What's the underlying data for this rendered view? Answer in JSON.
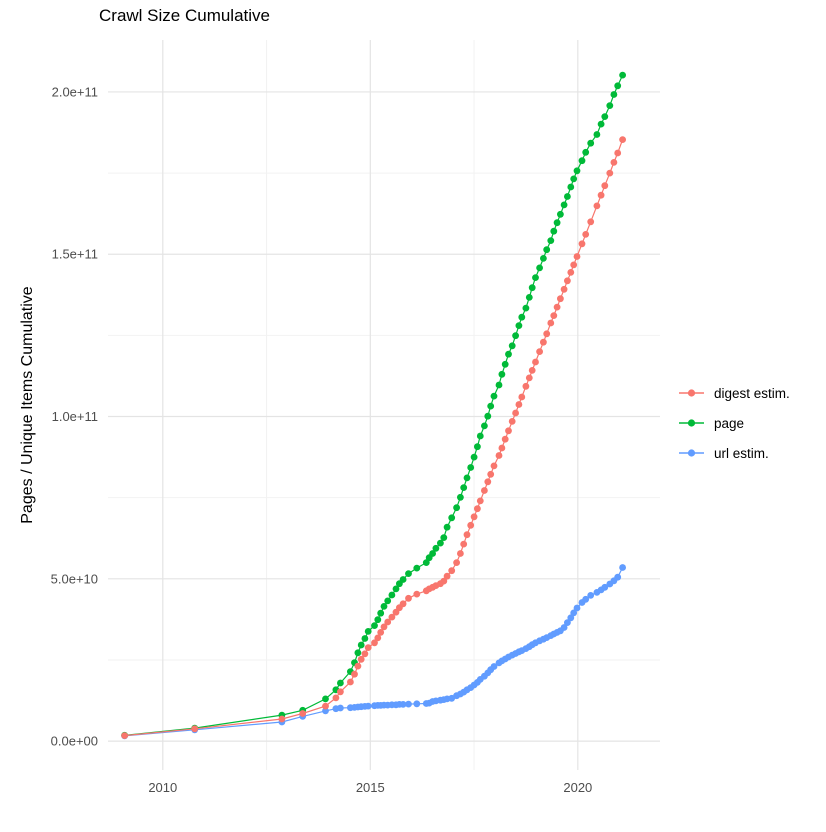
{
  "title": "Crawl Size Cumulative",
  "colors": {
    "digest": "#F8766D",
    "page": "#00BA38",
    "url": "#619CFF",
    "grid_major": "#e4e4e4",
    "grid_minor": "#f2f2f2",
    "tick_text": "#4d4d4d"
  },
  "chart_data": {
    "type": "scatter",
    "title": "Crawl Size Cumulative",
    "xlabel": "",
    "ylabel": "Pages / Unique Items Cumulative",
    "value_unit": "billions of pages (1e9)",
    "grid": true,
    "legend_position": "right",
    "xlim": [
      2008.68,
      2021.98
    ],
    "ylim_billions": [
      -8.9,
      216.0
    ],
    "x_ticks": [
      {
        "label": "2010",
        "value": 2010
      },
      {
        "label": "2015",
        "value": 2015
      },
      {
        "label": "2020",
        "value": 2020
      }
    ],
    "x_minor": [
      2012.5,
      2017.5
    ],
    "y_ticks": [
      {
        "label": "0.0e+00",
        "value": 0
      },
      {
        "label": "5.0e+10",
        "value": 50
      },
      {
        "label": "1.0e+11",
        "value": 100
      },
      {
        "label": "1.5e+11",
        "value": 150
      },
      {
        "label": "2.0e+11",
        "value": 200
      }
    ],
    "y_minor": [
      25,
      75,
      125,
      175
    ],
    "x": [
      2009.08,
      2010.77,
      2012.87,
      2013.37,
      2013.92,
      2014.17,
      2014.28,
      2014.52,
      2014.62,
      2014.7,
      2014.78,
      2014.87,
      2014.95,
      2015.1,
      2015.18,
      2015.25,
      2015.33,
      2015.42,
      2015.52,
      2015.62,
      2015.7,
      2015.79,
      2015.92,
      2016.12,
      2016.35,
      2016.42,
      2016.5,
      2016.58,
      2016.69,
      2016.77,
      2016.85,
      2016.96,
      2017.08,
      2017.17,
      2017.25,
      2017.33,
      2017.42,
      2017.5,
      2017.58,
      2017.65,
      2017.75,
      2017.83,
      2017.9,
      2017.98,
      2018.1,
      2018.17,
      2018.25,
      2018.33,
      2018.42,
      2018.5,
      2018.58,
      2018.65,
      2018.75,
      2018.83,
      2018.9,
      2018.98,
      2019.08,
      2019.17,
      2019.25,
      2019.35,
      2019.42,
      2019.5,
      2019.58,
      2019.67,
      2019.75,
      2019.83,
      2019.9,
      2019.98,
      2020.1,
      2020.19,
      2020.31,
      2020.46,
      2020.56,
      2020.65,
      2020.77,
      2020.87,
      2020.96,
      2021.08
    ],
    "series": [
      {
        "name": "digest estim.",
        "color": "#F8766D",
        "values": [
          1.7,
          3.8,
          6.8,
          8.5,
          10.8,
          13.3,
          15.2,
          18.2,
          20.6,
          23.1,
          25.2,
          26.9,
          28.8,
          30.3,
          31.8,
          33.5,
          35.2,
          36.7,
          38.2,
          39.7,
          41.1,
          42.3,
          44.0,
          45.3,
          46.3,
          46.9,
          47.4,
          47.9,
          48.5,
          49.3,
          50.8,
          52.5,
          55.0,
          57.8,
          60.7,
          63.6,
          66.5,
          69.1,
          71.6,
          74.0,
          77.2,
          79.9,
          82.2,
          84.8,
          88.0,
          90.3,
          93.0,
          95.6,
          98.5,
          101.1,
          103.7,
          106.0,
          109.3,
          111.9,
          114.2,
          116.8,
          120.0,
          122.9,
          125.5,
          128.8,
          131.1,
          133.7,
          136.3,
          139.2,
          141.8,
          144.4,
          146.7,
          149.3,
          153.2,
          156.1,
          160.0,
          164.9,
          168.2,
          171.1,
          175.0,
          178.3,
          181.2,
          185.3
        ]
      },
      {
        "name": "page",
        "color": "#00BA38",
        "values": [
          1.8,
          4.0,
          8.0,
          9.5,
          13.0,
          15.8,
          17.9,
          21.4,
          24.2,
          27.2,
          29.6,
          31.6,
          33.8,
          35.6,
          37.4,
          39.4,
          41.5,
          43.2,
          45.0,
          46.9,
          48.5,
          49.8,
          51.6,
          53.3,
          55.0,
          56.5,
          57.8,
          59.4,
          61.0,
          62.7,
          65.9,
          68.8,
          71.9,
          75.1,
          78.1,
          81.1,
          84.3,
          87.5,
          90.7,
          94.0,
          97.1,
          100.1,
          103.2,
          106.3,
          109.7,
          113.0,
          116.1,
          119.2,
          121.8,
          124.9,
          128.0,
          130.6,
          133.4,
          136.7,
          139.7,
          142.8,
          145.8,
          148.7,
          151.4,
          154.2,
          157.1,
          159.7,
          162.3,
          165.2,
          167.8,
          170.7,
          173.2,
          175.7,
          178.8,
          181.4,
          184.2,
          186.9,
          190.1,
          192.4,
          195.8,
          199.2,
          201.9,
          205.2
        ]
      },
      {
        "name": "url estim.",
        "color": "#619CFF",
        "values": [
          1.6,
          3.5,
          5.9,
          7.6,
          9.3,
          10.0,
          10.2,
          10.3,
          10.4,
          10.5,
          10.6,
          10.7,
          10.8,
          10.9,
          11.0,
          11.0,
          11.1,
          11.1,
          11.2,
          11.2,
          11.3,
          11.3,
          11.4,
          11.5,
          11.6,
          11.7,
          12.2,
          12.4,
          12.6,
          12.8,
          13.0,
          13.2,
          14.0,
          14.5,
          15.1,
          15.8,
          16.5,
          17.3,
          18.1,
          19.0,
          20.0,
          21.0,
          22.0,
          23.0,
          24.1,
          24.7,
          25.3,
          25.9,
          26.5,
          27.0,
          27.5,
          27.9,
          28.5,
          29.1,
          29.7,
          30.3,
          30.9,
          31.4,
          31.9,
          32.5,
          33.0,
          33.5,
          34.0,
          35.0,
          36.5,
          38.0,
          39.5,
          41.0,
          42.7,
          43.7,
          44.9,
          45.8,
          46.6,
          47.4,
          48.4,
          49.4,
          50.5,
          53.5
        ]
      }
    ]
  }
}
